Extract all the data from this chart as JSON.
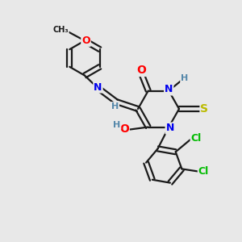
{
  "bg_color": "#e8e8e8",
  "bond_color": "#1a1a1a",
  "bond_width": 1.6,
  "dbo": 0.1,
  "atom_colors": {
    "O": "#ff0000",
    "N": "#0000ee",
    "S": "#bbbb00",
    "Cl": "#00bb00",
    "C": "#1a1a1a",
    "H": "#5588aa"
  },
  "font_size": 9,
  "fig_size": [
    3.0,
    3.0
  ],
  "dpi": 100
}
